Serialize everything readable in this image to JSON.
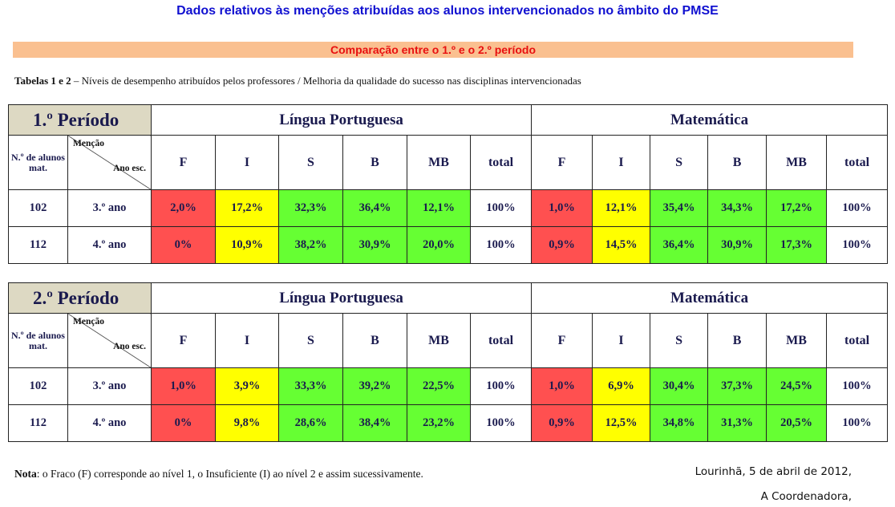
{
  "title": "Dados relativos às menções atribuídas aos alunos intervencionados no âmbito do PMSE",
  "subtitle": "Comparação entre o 1.º e o 2.º período",
  "caption": {
    "bold": "Tabelas 1 e 2",
    "text": " – Níveis de desempenho atribuídos pelos professores / Melhoria da qualidade do sucesso nas disciplinas intervencionadas"
  },
  "header": {
    "n_alunos": "N.º de alunos mat.",
    "mencao": "Menção",
    "ano_esc": "Ano esc.",
    "subjects": [
      "Língua Portuguesa",
      "Matemática"
    ],
    "levels": [
      "F",
      "I",
      "S",
      "B",
      "MB",
      "total"
    ]
  },
  "colors": {
    "F": "#ff5050",
    "I": "#ffff00",
    "S": "#66ff33",
    "B": "#66ff33",
    "MB": "#66ff33",
    "header_period": "#ddd9c3"
  },
  "tables": [
    {
      "period": "1.º Período",
      "rows": [
        {
          "n": "102",
          "ano": "3.º ano",
          "lp": [
            "2,0%",
            "17,2%",
            "32,3%",
            "36,4%",
            "12,1%",
            "100%"
          ],
          "mat": [
            "1,0%",
            "12,1%",
            "35,4%",
            "34,3%",
            "17,2%",
            "100%"
          ]
        },
        {
          "n": "112",
          "ano": "4.º ano",
          "lp": [
            "0%",
            "10,9%",
            "38,2%",
            "30,9%",
            "20,0%",
            "100%"
          ],
          "mat": [
            "0,9%",
            "14,5%",
            "36,4%",
            "30,9%",
            "17,3%",
            "100%"
          ]
        }
      ]
    },
    {
      "period": "2.º Período",
      "rows": [
        {
          "n": "102",
          "ano": "3.º ano",
          "lp": [
            "1,0%",
            "3,9%",
            "33,3%",
            "39,2%",
            "22,5%",
            "100%"
          ],
          "mat": [
            "1,0%",
            "6,9%",
            "30,4%",
            "37,3%",
            "24,5%",
            "100%"
          ]
        },
        {
          "n": "112",
          "ano": "4.º ano",
          "lp": [
            "0%",
            "9,8%",
            "28,6%",
            "38,4%",
            "23,2%",
            "100%"
          ],
          "mat": [
            "0,9%",
            "12,5%",
            "34,8%",
            "31,3%",
            "20,5%",
            "100%"
          ]
        }
      ]
    }
  ],
  "nota": {
    "bold": "Nota",
    "text": ": o Fraco (F) corresponde ao nível 1, o Insuficiente (I) ao nível 2 e assim sucessivamente."
  },
  "footer": {
    "place_date": "Lourinhã, 5 de abril de 2012,",
    "signature": "A Coordenadora,"
  }
}
